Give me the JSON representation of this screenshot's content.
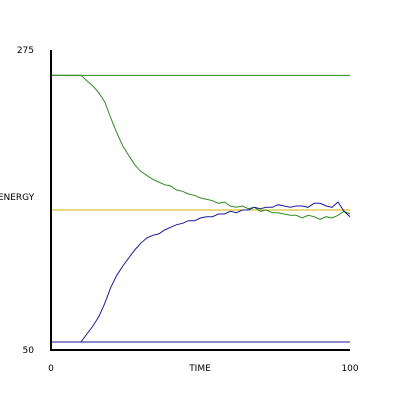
{
  "chart_data": {
    "type": "line",
    "title": "",
    "xlabel": "TIME",
    "ylabel": "ENERGY",
    "xlim": [
      0,
      100
    ],
    "ylim": [
      50,
      275
    ],
    "x_ticks": [
      {
        "value": 0,
        "label": "0"
      },
      {
        "value": 100,
        "label": "100"
      }
    ],
    "y_ticks": [
      {
        "value": 275,
        "label": "275"
      },
      {
        "value": 50,
        "label": "50"
      }
    ],
    "legend": "none",
    "grid": false,
    "colors": {
      "green": "#2e8b1f",
      "blue": "#1a1a9a",
      "yellow": "#d4b000",
      "axis": "#000000"
    },
    "reference_lines": [
      {
        "id": "green-initial",
        "y": 256,
        "color": "green"
      },
      {
        "id": "equilibrium",
        "y": 155,
        "color": "yellow"
      },
      {
        "id": "blue-initial",
        "y": 56,
        "color": "blue"
      }
    ],
    "series": [
      {
        "id": "green",
        "color": "green",
        "x": [
          0,
          5,
          10,
          12,
          14,
          16,
          18,
          20,
          22,
          24,
          26,
          28,
          30,
          32,
          34,
          36,
          38,
          40,
          42,
          44,
          46,
          48,
          50,
          52,
          54,
          56,
          58,
          60,
          62,
          64,
          66,
          68,
          70,
          72,
          74,
          76,
          78,
          80,
          82,
          84,
          86,
          88,
          90,
          92,
          94,
          96,
          98,
          100
        ],
        "y": [
          256,
          256,
          256,
          252,
          248,
          243,
          236,
          224,
          213,
          203,
          196,
          189,
          184,
          181,
          178,
          176,
          174,
          173,
          170,
          169,
          167,
          166,
          164,
          163,
          162,
          160,
          161,
          158,
          157,
          158,
          156,
          157,
          154,
          155,
          153,
          153,
          152,
          151,
          151,
          149,
          151,
          150,
          148,
          150,
          149,
          151,
          154,
          152
        ]
      },
      {
        "id": "blue",
        "color": "blue",
        "x": [
          0,
          5,
          10,
          12,
          14,
          16,
          18,
          20,
          22,
          24,
          26,
          28,
          30,
          32,
          34,
          36,
          38,
          40,
          42,
          44,
          46,
          48,
          50,
          52,
          54,
          56,
          58,
          60,
          62,
          64,
          66,
          68,
          70,
          72,
          74,
          76,
          78,
          80,
          82,
          84,
          86,
          88,
          90,
          92,
          94,
          96,
          98,
          100
        ],
        "y": [
          56,
          56,
          56,
          62,
          68,
          75,
          85,
          97,
          106,
          113,
          119,
          125,
          130,
          134,
          136,
          137,
          140,
          142,
          144,
          145,
          147,
          147,
          149,
          150,
          150,
          152,
          152,
          154,
          153,
          155,
          155,
          157,
          156,
          157,
          157,
          159,
          158,
          157,
          158,
          158,
          157,
          160,
          160,
          158,
          157,
          161,
          154,
          150
        ]
      }
    ]
  }
}
